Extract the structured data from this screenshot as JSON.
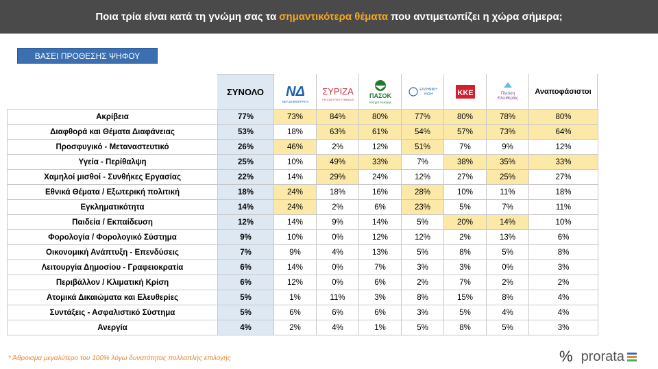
{
  "header": {
    "title_pre": "Ποια τρία είναι κατά τη γνώμη σας τα",
    "title_highlight": "σημαντικότερα θέματα",
    "title_post": "που αντιμετωπίζει η χώρα σήμερα;"
  },
  "badge": {
    "label": "ΒΑΣΕΙ ΠΡΟΘΕΣΗΣ ΨΗΦΟΥ"
  },
  "columns": {
    "total": "ΣΥΝΟΛΟ",
    "parties": [
      {
        "name": "nd",
        "logo_text": "ΝΔ",
        "sub": "ΝΕΑ ΔΗΜΟΚΡΑΤΙΑ",
        "color": "#1b5fad"
      },
      {
        "name": "syriza",
        "logo_text": "ΣΥΡΙΖΑ",
        "sub": "ΠΡΟΟΔΕΥΤΙΚΗ ΣΥΜΜΑΧΙΑ",
        "color": "#c8323c"
      },
      {
        "name": "pasok",
        "logo_text": "ΠΑΣΟΚ",
        "sub": "Κίνημα Αλλαγής",
        "color": "#1f7a2e"
      },
      {
        "name": "elliniki-lysi",
        "logo_text": "ΕΛΛΗΝΙΚΗ ΛΥΣΗ",
        "sub": "",
        "color": "#2b6aa8"
      },
      {
        "name": "kke",
        "logo_text": "ΚΚΕ",
        "sub": "",
        "color": "#d2202f"
      },
      {
        "name": "plefsi",
        "logo_text": "Πλεύση",
        "sub": "Ελευθερίας",
        "color": "#7b3fa0"
      }
    ],
    "undecided": "Αναποφάσιστοι"
  },
  "rows": [
    {
      "label": "Ακρίβεια",
      "total": "77%",
      "values": [
        "73%",
        "84%",
        "80%",
        "77%",
        "80%",
        "78%",
        "80%"
      ],
      "hl": [
        1,
        1,
        1,
        1,
        1,
        1,
        1
      ]
    },
    {
      "label": "Διαφθορά και Θέματα Διαφάνειας",
      "total": "53%",
      "values": [
        "18%",
        "63%",
        "61%",
        "54%",
        "57%",
        "73%",
        "64%"
      ],
      "hl": [
        0,
        1,
        1,
        1,
        1,
        1,
        1
      ]
    },
    {
      "label": "Προσφυγικό - Μεταναστευτικό",
      "total": "26%",
      "values": [
        "46%",
        "2%",
        "12%",
        "51%",
        "7%",
        "9%",
        "12%"
      ],
      "hl": [
        1,
        0,
        0,
        1,
        0,
        0,
        0
      ]
    },
    {
      "label": "Υγεία - Περίθαλψη",
      "total": "25%",
      "values": [
        "10%",
        "49%",
        "33%",
        "7%",
        "38%",
        "35%",
        "33%"
      ],
      "hl": [
        0,
        1,
        1,
        0,
        1,
        1,
        1
      ]
    },
    {
      "label": "Χαμηλοί μισθοί - Συνθήκες Εργασίας",
      "total": "22%",
      "values": [
        "14%",
        "29%",
        "24%",
        "12%",
        "27%",
        "25%",
        "27%"
      ],
      "hl": [
        0,
        1,
        0,
        0,
        0,
        1,
        0
      ]
    },
    {
      "label": "Εθνικά Θέματα / Εξωτερική πολιτική",
      "total": "18%",
      "values": [
        "24%",
        "18%",
        "16%",
        "28%",
        "10%",
        "11%",
        "18%"
      ],
      "hl": [
        1,
        0,
        0,
        1,
        0,
        0,
        0
      ]
    },
    {
      "label": "Εγκληματικότητα",
      "total": "14%",
      "values": [
        "24%",
        "2%",
        "6%",
        "23%",
        "5%",
        "7%",
        "11%"
      ],
      "hl": [
        1,
        0,
        0,
        1,
        0,
        0,
        0
      ]
    },
    {
      "label": "Παιδεία / Εκπαίδευση",
      "total": "12%",
      "values": [
        "14%",
        "9%",
        "14%",
        "5%",
        "20%",
        "14%",
        "10%"
      ],
      "hl": [
        0,
        0,
        0,
        0,
        1,
        1,
        0
      ]
    },
    {
      "label": "Φορολογία / Φορολογικό Σύστημα",
      "total": "9%",
      "values": [
        "10%",
        "0%",
        "12%",
        "12%",
        "2%",
        "13%",
        "6%"
      ],
      "hl": [
        0,
        0,
        0,
        0,
        0,
        0,
        0
      ]
    },
    {
      "label": "Οικονομική Ανάπτυξη - Επενδύσεις",
      "total": "7%",
      "values": [
        "9%",
        "4%",
        "13%",
        "5%",
        "8%",
        "5%",
        "8%"
      ],
      "hl": [
        0,
        0,
        0,
        0,
        0,
        0,
        0
      ]
    },
    {
      "label": "Λειτουργία Δημοσίου - Γραφειοκρατία",
      "total": "6%",
      "values": [
        "14%",
        "0%",
        "7%",
        "3%",
        "3%",
        "0%",
        "3%"
      ],
      "hl": [
        0,
        0,
        0,
        0,
        0,
        0,
        0
      ]
    },
    {
      "label": "Περιβάλλον / Κλιματική Κρίση",
      "total": "6%",
      "values": [
        "12%",
        "0%",
        "6%",
        "2%",
        "7%",
        "2%",
        "2%"
      ],
      "hl": [
        0,
        0,
        0,
        0,
        0,
        0,
        0
      ]
    },
    {
      "label": "Ατομικά Δικαιώματα και Ελευθερίες",
      "total": "5%",
      "values": [
        "1%",
        "11%",
        "3%",
        "8%",
        "15%",
        "8%",
        "4%"
      ],
      "hl": [
        0,
        0,
        0,
        0,
        0,
        0,
        0
      ]
    },
    {
      "label": "Συντάξεις - Ασφαλιστικό Σύστημα",
      "total": "5%",
      "values": [
        "6%",
        "6%",
        "6%",
        "3%",
        "5%",
        "4%",
        "4%"
      ],
      "hl": [
        0,
        0,
        0,
        0,
        0,
        0,
        0
      ]
    },
    {
      "label": "Ανεργία",
      "total": "4%",
      "values": [
        "2%",
        "4%",
        "1%",
        "5%",
        "8%",
        "5%",
        "3%"
      ],
      "hl": [
        0,
        0,
        0,
        0,
        0,
        0,
        0
      ]
    }
  ],
  "footnote": "* Άθροισμα μεγαλύτερο του 100% λόγω δυνατότητας πολλαπλής επιλογής",
  "brand": {
    "symbol": "%",
    "name": "prorata"
  }
}
